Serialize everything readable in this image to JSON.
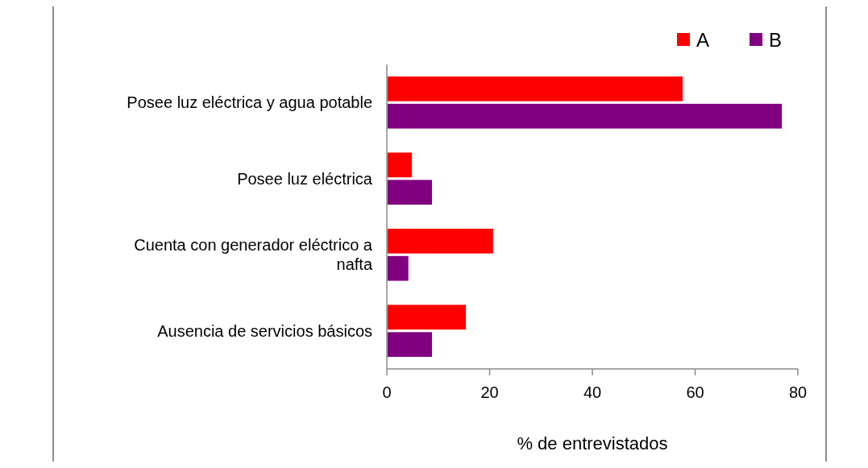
{
  "chart_data": {
    "type": "bar",
    "orientation": "horizontal",
    "xlabel": "% de entrevistados",
    "categories": [
      "Posee luz eléctrica y agua potable",
      "Posee luz eléctrica",
      "Cuenta con generador eléctrico a nafta",
      "Ausencia de servicios básicos"
    ],
    "series": [
      {
        "name": "A",
        "color": "#ff0000",
        "values": [
          57.7,
          5.0,
          20.8,
          15.5
        ]
      },
      {
        "name": "B",
        "color": "#800080",
        "values": [
          77.0,
          8.9,
          4.3,
          8.9
        ]
      }
    ],
    "xlim": [
      0,
      80
    ],
    "xticks": [
      0,
      20,
      40,
      60,
      80
    ],
    "grid": false,
    "legend": "top right"
  }
}
